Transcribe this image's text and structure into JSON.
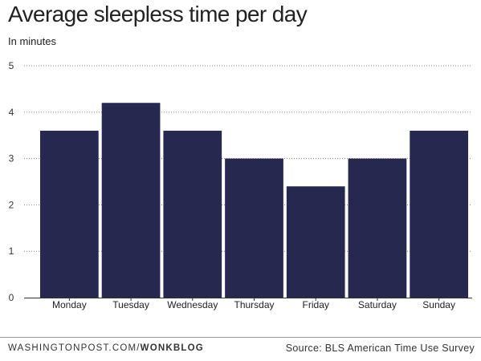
{
  "chart_data": {
    "type": "bar",
    "title": "Average sleepless time per day",
    "subtitle": "In minutes",
    "categories": [
      "Monday",
      "Tuesday",
      "Wednesday",
      "Thursday",
      "Friday",
      "Saturday",
      "Sunday"
    ],
    "values": [
      3.6,
      4.2,
      3.6,
      3.0,
      2.4,
      3.0,
      3.6
    ],
    "ylim": [
      0,
      5
    ],
    "yticks": [
      "0",
      "1",
      "2",
      "3",
      "4",
      "5"
    ],
    "grid": true,
    "bar_color": "#262850"
  },
  "footer": {
    "source_left": "WASHINGTONPOST.COM/",
    "source_brand": "WONKBLOG",
    "source_right": "Source: BLS American Time Use Survey"
  }
}
